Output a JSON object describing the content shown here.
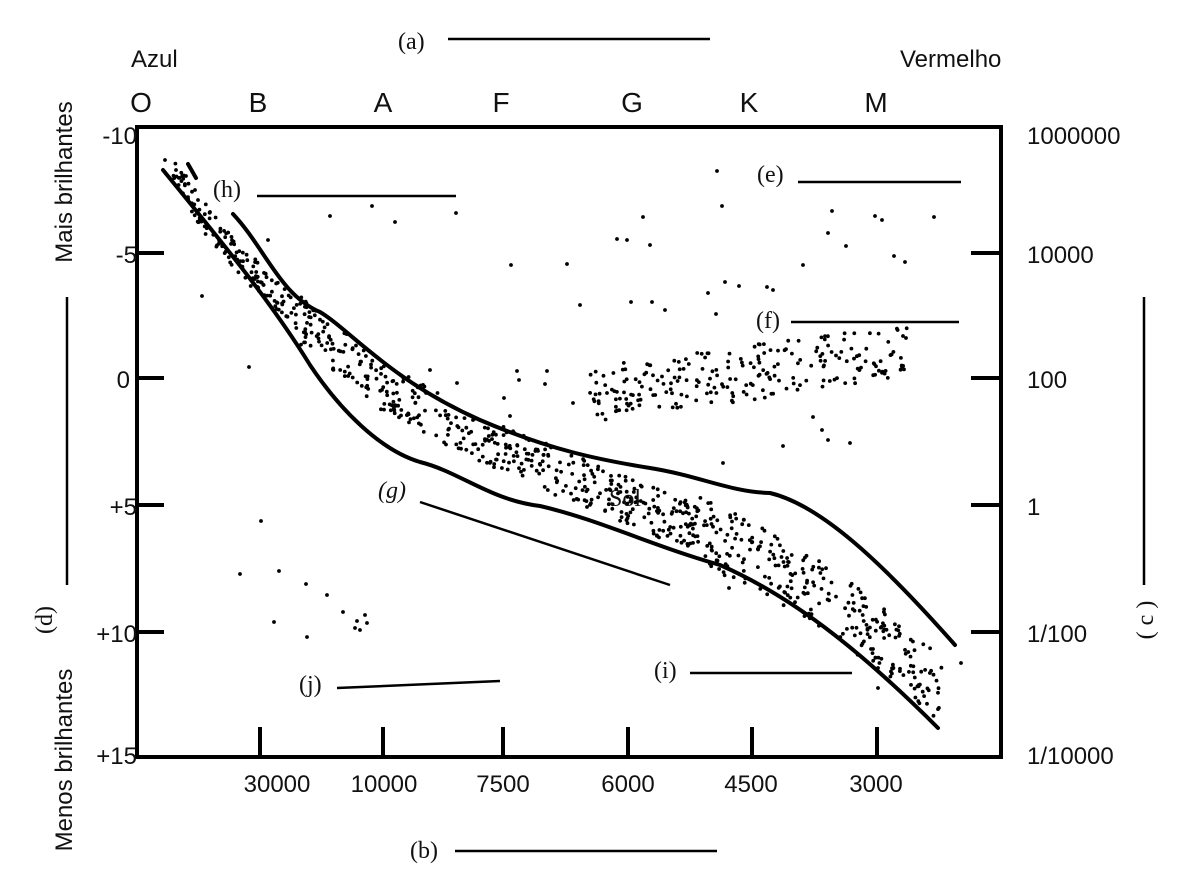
{
  "corner_labels": {
    "left": "Azul",
    "right": "Vermelho"
  },
  "spectral_classes": [
    "O",
    "B",
    "A",
    "F",
    "G",
    "K",
    "M"
  ],
  "temperature_ticks": [
    "30000",
    "10000",
    "7500",
    "6000",
    "4500",
    "3000"
  ],
  "magnitude_ticks": [
    "-10",
    "-5",
    "0",
    "+5",
    "+10",
    "+15"
  ],
  "luminosity_ticks": [
    "1000000",
    "10000",
    "100",
    "1",
    "1/100",
    "1/10000"
  ],
  "side_labels": {
    "brighter": "Mais brilhantes",
    "dimmer": "Menos brilhantes"
  },
  "blanks": {
    "a": "(a)",
    "b": "(b)",
    "c": "( c )",
    "d": "(d)",
    "e": "(e)",
    "f": "(f)",
    "g": "(g)",
    "h": "(h)",
    "i": "(i)",
    "j": "(j)"
  },
  "sun_label": "Sol"
}
